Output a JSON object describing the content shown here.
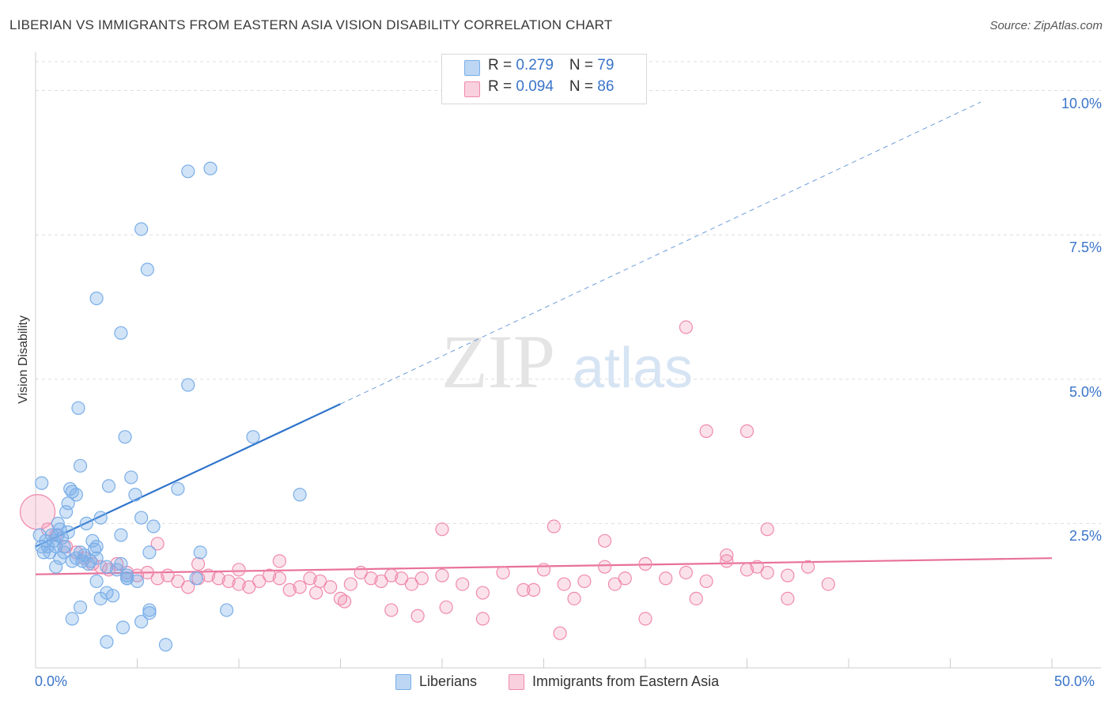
{
  "title": "LIBERIAN VS IMMIGRANTS FROM EASTERN ASIA VISION DISABILITY CORRELATION CHART",
  "source": "Source: ZipAtlas.com",
  "watermark": {
    "zip": "ZIP",
    "atlas": "atlas"
  },
  "colors": {
    "blue": "#7aaee8",
    "blue_line": "#2f74cc",
    "blue_fill": "rgba(122,174,232,0.35)",
    "pink": "#f08aad",
    "pink_line": "#e8709a",
    "pink_fill": "rgba(240,138,173,0.25)",
    "axis_text": "#3a74c9"
  },
  "legend_top": [
    {
      "r_label": "R =",
      "r_value": "0.279",
      "n_label": "N =",
      "n_value": "79",
      "color": "blue"
    },
    {
      "r_label": "R =",
      "r_value": "0.094",
      "n_label": "N =",
      "n_value": "86",
      "color": "pink"
    }
  ],
  "legend_bottom": [
    {
      "label": "Liberians",
      "color": "blue"
    },
    {
      "label": "Immigrants from Eastern Asia",
      "color": "pink"
    }
  ],
  "chart_data": {
    "type": "scatter",
    "ylabel": "Vision Disability",
    "xlabel": "",
    "xlim": [
      0,
      50
    ],
    "ylim": [
      0,
      10.5
    ],
    "x_tick_labels": [
      {
        "value": 0,
        "label": "0.0%"
      },
      {
        "value": 50,
        "label": "50.0%"
      }
    ],
    "y_tick_labels": [
      {
        "value": 2.5,
        "label": "2.5%"
      },
      {
        "value": 5.0,
        "label": "5.0%"
      },
      {
        "value": 7.5,
        "label": "7.5%"
      },
      {
        "value": 10.0,
        "label": "10.0%"
      }
    ],
    "series": [
      {
        "name": "Liberians",
        "color": "blue",
        "trend": {
          "x0": 0,
          "y0": 2.1,
          "x1": 15,
          "y1": 4.57,
          "dash_x1": 46.5,
          "dash_y1": 9.8
        },
        "points": [
          [
            0.2,
            2.3
          ],
          [
            0.3,
            2.1
          ],
          [
            0.4,
            2.0
          ],
          [
            0.5,
            2.2
          ],
          [
            0.6,
            2.1
          ],
          [
            0.7,
            2.0
          ],
          [
            0.8,
            2.3
          ],
          [
            0.9,
            2.2
          ],
          [
            1.0,
            2.1
          ],
          [
            1.1,
            2.3
          ],
          [
            1.2,
            2.4
          ],
          [
            1.3,
            2.25
          ],
          [
            1.4,
            2.1
          ],
          [
            0.3,
            3.2
          ],
          [
            1.2,
            1.9
          ],
          [
            1.6,
            2.35
          ],
          [
            1.8,
            1.85
          ],
          [
            2.0,
            1.9
          ],
          [
            2.2,
            2.0
          ],
          [
            2.4,
            1.95
          ],
          [
            1.1,
            2.5
          ],
          [
            1.5,
            2.7
          ],
          [
            1.6,
            2.85
          ],
          [
            1.8,
            3.05
          ],
          [
            2.0,
            3.0
          ],
          [
            2.2,
            3.5
          ],
          [
            2.5,
            2.5
          ],
          [
            2.8,
            2.2
          ],
          [
            3.0,
            2.1
          ],
          [
            3.2,
            2.6
          ],
          [
            1.7,
            3.1
          ],
          [
            2.3,
            1.85
          ],
          [
            2.6,
            1.8
          ],
          [
            3.0,
            1.9
          ],
          [
            3.5,
            1.75
          ],
          [
            4.0,
            1.7
          ],
          [
            4.5,
            1.6
          ],
          [
            5.0,
            1.5
          ],
          [
            3.6,
            3.15
          ],
          [
            4.2,
            2.3
          ],
          [
            4.4,
            4.0
          ],
          [
            4.7,
            3.3
          ],
          [
            4.9,
            3.0
          ],
          [
            5.2,
            2.6
          ],
          [
            5.6,
            2.0
          ],
          [
            5.8,
            2.45
          ],
          [
            3.0,
            1.5
          ],
          [
            3.2,
            1.2
          ],
          [
            3.5,
            1.3
          ],
          [
            3.8,
            1.25
          ],
          [
            1.8,
            0.85
          ],
          [
            2.2,
            1.05
          ],
          [
            3.5,
            0.45
          ],
          [
            4.3,
            0.7
          ],
          [
            4.5,
            1.55
          ],
          [
            5.2,
            0.8
          ],
          [
            5.6,
            0.95
          ],
          [
            5.6,
            1.0
          ],
          [
            6.4,
            0.4
          ],
          [
            7.0,
            3.1
          ],
          [
            7.9,
            1.55
          ],
          [
            8.1,
            2.0
          ],
          [
            9.4,
            1.0
          ],
          [
            10.7,
            4.0
          ],
          [
            13.0,
            3.0
          ],
          [
            2.1,
            4.5
          ],
          [
            4.2,
            5.8
          ],
          [
            3.0,
            6.4
          ],
          [
            5.5,
            6.9
          ],
          [
            5.2,
            7.6
          ],
          [
            7.5,
            8.6
          ],
          [
            8.6,
            8.65
          ],
          [
            7.5,
            4.9
          ],
          [
            4.5,
            1.55
          ],
          [
            4.2,
            1.8
          ],
          [
            1.0,
            1.75
          ],
          [
            1.4,
            2.0
          ],
          [
            2.7,
            1.85
          ],
          [
            2.9,
            2.05
          ]
        ]
      },
      {
        "name": "Immigrants from Eastern Asia",
        "color": "pink",
        "trend": {
          "x0": 0,
          "y0": 1.62,
          "x1": 50,
          "y1": 1.9
        },
        "points": [
          [
            0.1,
            2.7
          ],
          [
            0.6,
            2.4
          ],
          [
            1.0,
            2.3
          ],
          [
            1.5,
            2.1
          ],
          [
            2.0,
            2.0
          ],
          [
            2.4,
            1.9
          ],
          [
            2.8,
            1.8
          ],
          [
            3.2,
            1.75
          ],
          [
            3.6,
            1.7
          ],
          [
            4.0,
            1.8
          ],
          [
            4.5,
            1.65
          ],
          [
            5.0,
            1.6
          ],
          [
            5.5,
            1.65
          ],
          [
            6.0,
            1.55
          ],
          [
            6.5,
            1.6
          ],
          [
            7.0,
            1.5
          ],
          [
            7.5,
            1.4
          ],
          [
            8.0,
            1.55
          ],
          [
            8.5,
            1.6
          ],
          [
            9.0,
            1.55
          ],
          [
            9.5,
            1.5
          ],
          [
            10.0,
            1.45
          ],
          [
            10.5,
            1.4
          ],
          [
            11.0,
            1.5
          ],
          [
            11.5,
            1.6
          ],
          [
            12.0,
            1.55
          ],
          [
            12.5,
            1.35
          ],
          [
            13.0,
            1.4
          ],
          [
            13.5,
            1.55
          ],
          [
            14.0,
            1.5
          ],
          [
            14.5,
            1.4
          ],
          [
            15.0,
            1.2
          ],
          [
            15.5,
            1.45
          ],
          [
            16.0,
            1.65
          ],
          [
            16.5,
            1.55
          ],
          [
            17.0,
            1.5
          ],
          [
            17.5,
            1.6
          ],
          [
            18.0,
            1.55
          ],
          [
            18.5,
            1.45
          ],
          [
            19.0,
            1.55
          ],
          [
            20.0,
            1.6
          ],
          [
            21.0,
            1.45
          ],
          [
            22.0,
            1.3
          ],
          [
            23.0,
            1.65
          ],
          [
            24.0,
            1.35
          ],
          [
            25.0,
            1.7
          ],
          [
            26.0,
            1.45
          ],
          [
            27.0,
            1.5
          ],
          [
            28.0,
            1.75
          ],
          [
            29.0,
            1.55
          ],
          [
            30.0,
            1.8
          ],
          [
            31.0,
            1.55
          ],
          [
            32.0,
            1.65
          ],
          [
            33.0,
            1.5
          ],
          [
            34.0,
            1.85
          ],
          [
            35.0,
            1.7
          ],
          [
            36.0,
            1.65
          ],
          [
            37.0,
            1.6
          ],
          [
            38.0,
            1.75
          ],
          [
            39.0,
            1.45
          ],
          [
            6.0,
            2.15
          ],
          [
            8.0,
            1.8
          ],
          [
            10.0,
            1.7
          ],
          [
            12.0,
            1.85
          ],
          [
            13.8,
            1.3
          ],
          [
            15.2,
            1.15
          ],
          [
            17.5,
            1.0
          ],
          [
            18.8,
            0.9
          ],
          [
            20.2,
            1.05
          ],
          [
            22.0,
            0.85
          ],
          [
            24.5,
            1.35
          ],
          [
            25.8,
            0.6
          ],
          [
            26.5,
            1.2
          ],
          [
            28.5,
            1.45
          ],
          [
            30.0,
            0.85
          ],
          [
            32.5,
            1.2
          ],
          [
            34.0,
            1.95
          ],
          [
            35.5,
            1.75
          ],
          [
            37.0,
            1.2
          ],
          [
            36.0,
            2.4
          ],
          [
            20.0,
            2.4
          ],
          [
            25.5,
            2.45
          ],
          [
            28.0,
            2.2
          ],
          [
            33.0,
            4.1
          ],
          [
            35.0,
            4.1
          ],
          [
            32.0,
            5.9
          ]
        ]
      }
    ]
  }
}
